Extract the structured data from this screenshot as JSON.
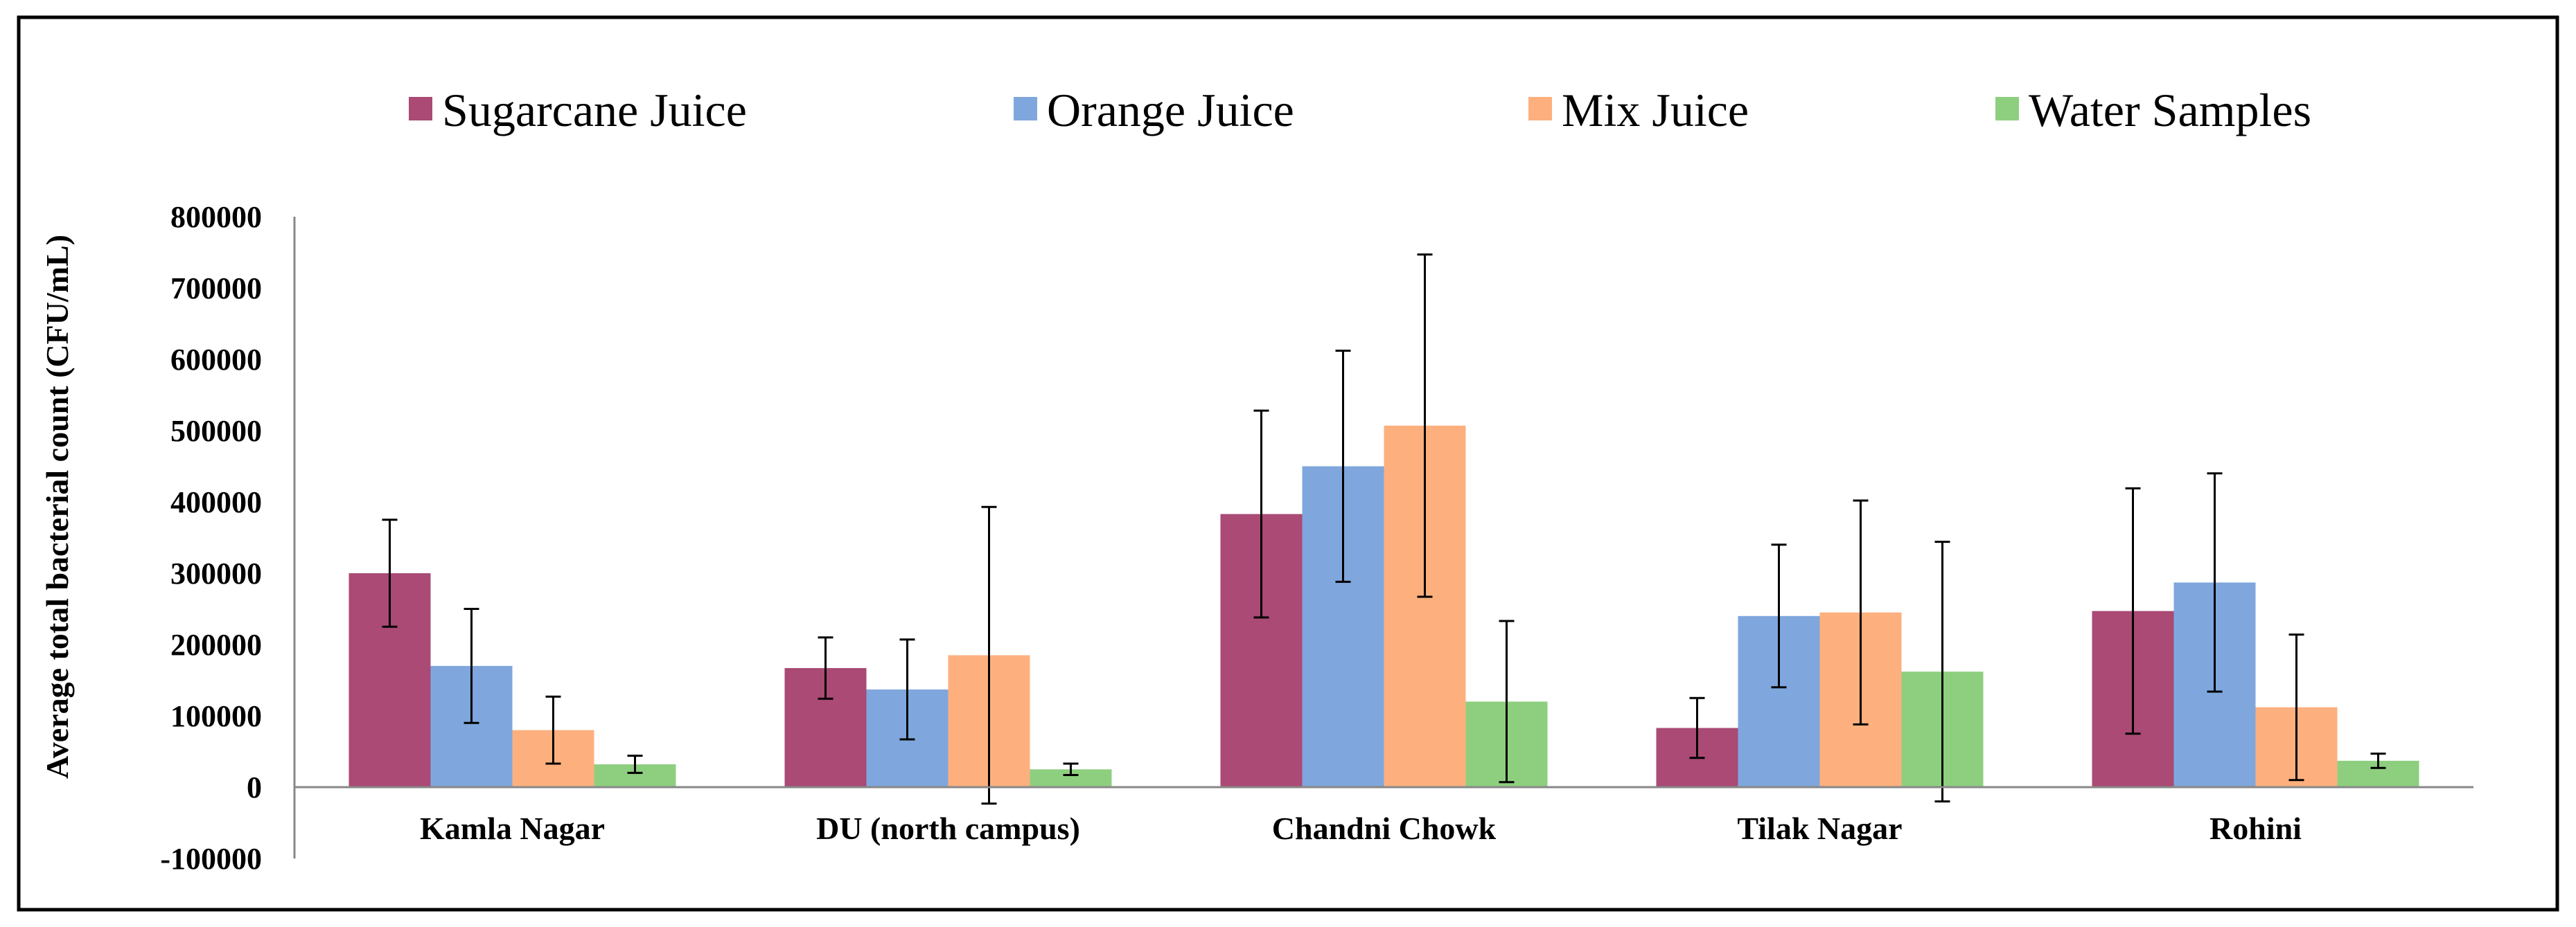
{
  "chart_data": {
    "type": "bar",
    "title": "",
    "xlabel": "",
    "ylabel": "Average total bacterial count (CFU/mL)",
    "ylim": [
      -100000,
      800000
    ],
    "yticks": [
      "-100000",
      "0",
      "100000",
      "200000",
      "300000",
      "400000",
      "500000",
      "600000",
      "700000",
      "800000"
    ],
    "grid": false,
    "legend_position": "top",
    "categories": [
      "Kamla Nagar",
      "DU (north campus)",
      "Chandni Chowk",
      "Tilak Nagar",
      "Rohini"
    ],
    "series": [
      {
        "name": "Sugarcane Juice",
        "color": "#aa4a75",
        "values": [
          300000,
          167000,
          383000,
          83000,
          247000
        ],
        "error": [
          75000,
          43000,
          145000,
          42000,
          172000
        ]
      },
      {
        "name": "Orange Juice",
        "color": "#7fa7dd",
        "values": [
          170000,
          137000,
          450000,
          240000,
          287000
        ],
        "error": [
          80000,
          70000,
          162000,
          100000,
          153000
        ]
      },
      {
        "name": "Mix Juice",
        "color": "#fdb07e",
        "values": [
          80000,
          185000,
          507000,
          245000,
          112000
        ],
        "error": [
          47000,
          208000,
          240000,
          157000,
          102000
        ]
      },
      {
        "name": "Water Samples",
        "color": "#8ecf7f",
        "values": [
          32000,
          25000,
          120000,
          162000,
          37000
        ],
        "error": [
          12000,
          8000,
          113000,
          182000,
          10000
        ]
      }
    ]
  }
}
